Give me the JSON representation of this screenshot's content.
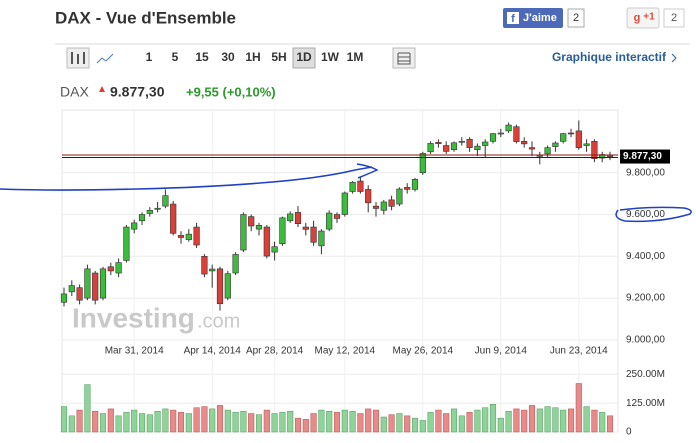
{
  "header": {
    "title": "DAX - Vue d'Ensemble",
    "like": "J'aime",
    "like_count": "2",
    "gplus": "+1",
    "gplus_count": "2"
  },
  "toolbar": {
    "intervals": [
      "1",
      "5",
      "15",
      "30",
      "1H",
      "5H",
      "1D",
      "1W",
      "1M"
    ],
    "interactive": "Graphique interactif"
  },
  "quote": {
    "symbol": "DAX",
    "price": "9.877,30",
    "change": "+9,55 (+0,10%)"
  },
  "watermark": {
    "brand": "Investing",
    "suffix": ".com"
  },
  "chart_data": {
    "type": "candlestick",
    "categories": [
      null,
      null,
      null,
      null,
      null,
      null,
      null,
      null,
      null,
      "Mar 31, 2014",
      null,
      null,
      null,
      null,
      null,
      null,
      null,
      null,
      null,
      "Apr 14, 2014",
      null,
      null,
      null,
      null,
      null,
      null,
      null,
      "Apr 28, 2014",
      null,
      null,
      null,
      null,
      null,
      null,
      null,
      null,
      "May 12, 2014",
      null,
      null,
      null,
      null,
      null,
      null,
      null,
      null,
      null,
      "May 26, 2014",
      null,
      null,
      null,
      null,
      null,
      null,
      null,
      null,
      null,
      "Jun 9, 2014",
      null,
      null,
      null,
      null,
      null,
      null,
      null,
      null,
      null,
      "Jun 23, 2014",
      null,
      null,
      null,
      null
    ],
    "open": [
      9180,
      9230,
      9250,
      9200,
      9320,
      9200,
      9350,
      9320,
      9380,
      9530,
      9570,
      9605,
      9625,
      9640,
      9650,
      9500,
      9480,
      9540,
      9400,
      9330,
      9340,
      9200,
      9320,
      9430,
      9590,
      9530,
      9540,
      9420,
      9460,
      9570,
      9610,
      9540,
      9540,
      9450,
      9530,
      9600,
      9600,
      9710,
      9760,
      9720,
      9640,
      9620,
      9670,
      9650,
      9730,
      9720,
      9800,
      9900,
      9945,
      9930,
      9910,
      9950,
      9960,
      9910,
      9930,
      9950,
      9985,
      10000,
      10020,
      9950,
      9920,
      9880,
      9890,
      9925,
      9950,
      9990,
      10000,
      9930,
      9950,
      9870,
      9885
    ],
    "high": [
      9250,
      9285,
      9265,
      9360,
      9330,
      9350,
      9370,
      9390,
      9550,
      9575,
      9610,
      9635,
      9660,
      9720,
      9665,
      9520,
      9530,
      9560,
      9410,
      9360,
      9350,
      9330,
      9420,
      9610,
      9600,
      9560,
      9550,
      9470,
      9590,
      9615,
      9640,
      9560,
      9570,
      9530,
      9620,
      9610,
      9710,
      9760,
      9780,
      9740,
      9660,
      9670,
      9690,
      9730,
      9750,
      9775,
      9900,
      9950,
      9960,
      9950,
      9950,
      9970,
      9970,
      9940,
      9960,
      9990,
      10010,
      10040,
      10030,
      9970,
      9950,
      9900,
      9930,
      9950,
      9990,
      10010,
      10050,
      9960,
      9960,
      9900,
      9900
    ],
    "low": [
      9160,
      9210,
      9170,
      9190,
      9170,
      9190,
      9310,
      9300,
      9370,
      9510,
      9550,
      9590,
      9610,
      9630,
      9500,
      9460,
      9470,
      9440,
      9300,
      9250,
      9140,
      9190,
      9310,
      9420,
      9520,
      9500,
      9390,
      9380,
      9450,
      9560,
      9540,
      9500,
      9450,
      9410,
      9520,
      9560,
      9590,
      9700,
      9700,
      9610,
      9590,
      9600,
      9620,
      9640,
      9700,
      9710,
      9790,
      9890,
      9920,
      9890,
      9900,
      9930,
      9900,
      9880,
      9870,
      9940,
      9970,
      9990,
      9940,
      9920,
      9880,
      9840,
      9870,
      9900,
      9940,
      9970,
      9910,
      9900,
      9850,
      9850,
      9860
    ],
    "close": [
      9220,
      9260,
      9190,
      9340,
      9190,
      9340,
      9330,
      9370,
      9540,
      9560,
      9600,
      9620,
      9630,
      9690,
      9510,
      9490,
      9506,
      9454,
      9315,
      9339,
      9173,
      9317,
      9409,
      9600,
      9545,
      9548,
      9401,
      9446,
      9584,
      9603,
      9556,
      9529,
      9467,
      9521,
      9607,
      9581,
      9703,
      9754,
      9710,
      9656,
      9629,
      9660,
      9639,
      9722,
      9720,
      9768,
      9892,
      9940,
      9939,
      9902,
      9943,
      9950,
      9920,
      9927,
      9947,
      9987,
      9990,
      10028,
      9949,
      9938,
      9913,
      9883,
      9920,
      9942,
      9987,
      9987,
      9920,
      9938,
      9867,
      9887,
      9877.3
    ],
    "volume": [
      110,
      70,
      95,
      205,
      90,
      80,
      100,
      70,
      85,
      95,
      80,
      75,
      90,
      100,
      95,
      85,
      80,
      105,
      110,
      100,
      115,
      95,
      85,
      90,
      80,
      75,
      95,
      80,
      85,
      90,
      60,
      55,
      80,
      95,
      90,
      85,
      95,
      90,
      80,
      100,
      95,
      65,
      75,
      80,
      70,
      60,
      50,
      85,
      95,
      80,
      100,
      70,
      85,
      95,
      105,
      120,
      60,
      90,
      100,
      95,
      115,
      100,
      110,
      105,
      95,
      100,
      210,
      110,
      95,
      85,
      70
    ],
    "ylim": [
      8990,
      10100
    ],
    "yticks": [
      {
        "value": 9000,
        "label": "9.000,00"
      },
      {
        "value": 9200,
        "label": "9.200,00"
      },
      {
        "value": 9400,
        "label": "9.400,00"
      },
      {
        "value": 9600,
        "label": "9.600,00"
      },
      {
        "value": 9800,
        "label": "9.800,00"
      }
    ],
    "volume_lim": [
      0,
      290
    ],
    "volume_ticks": [
      0,
      {
        "value": 125,
        "label": "125.00M"
      },
      {
        "value": 250,
        "label": "250.00M"
      }
    ],
    "price_line": {
      "value": 9877.3,
      "label": "9.877,30"
    },
    "up_color": "#3dbb3d",
    "down_color": "#d9403a",
    "volume_up_color": "#8fd39a",
    "volume_down_color": "#e88a8a",
    "grid": true
  }
}
